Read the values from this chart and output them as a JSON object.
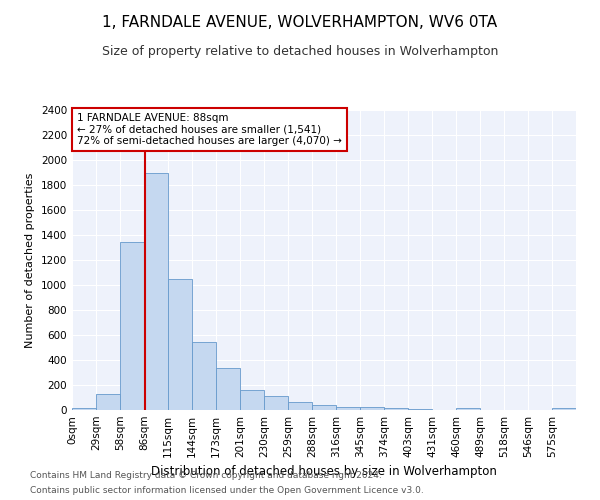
{
  "title": "1, FARNDALE AVENUE, WOLVERHAMPTON, WV6 0TA",
  "subtitle": "Size of property relative to detached houses in Wolverhampton",
  "xlabel": "Distribution of detached houses by size in Wolverhampton",
  "ylabel": "Number of detached properties",
  "bin_labels": [
    "0sqm",
    "29sqm",
    "58sqm",
    "86sqm",
    "115sqm",
    "144sqm",
    "173sqm",
    "201sqm",
    "230sqm",
    "259sqm",
    "288sqm",
    "316sqm",
    "345sqm",
    "374sqm",
    "403sqm",
    "431sqm",
    "460sqm",
    "489sqm",
    "518sqm",
    "546sqm",
    "575sqm"
  ],
  "bar_heights": [
    15,
    125,
    1345,
    1895,
    1045,
    545,
    340,
    160,
    110,
    63,
    38,
    28,
    22,
    15,
    8,
    0,
    20,
    0,
    0,
    0,
    18
  ],
  "bar_color": "#c5d8f0",
  "bar_edgecolor": "#6699cc",
  "vline_x": 88,
  "vline_color": "#cc0000",
  "annotation_text": "1 FARNDALE AVENUE: 88sqm\n← 27% of detached houses are smaller (1,541)\n72% of semi-detached houses are larger (4,070) →",
  "annotation_box_color": "#cc0000",
  "ylim": [
    0,
    2400
  ],
  "yticks": [
    0,
    200,
    400,
    600,
    800,
    1000,
    1200,
    1400,
    1600,
    1800,
    2000,
    2200,
    2400
  ],
  "bin_width": 29,
  "property_sqm": 88,
  "footer1": "Contains HM Land Registry data © Crown copyright and database right 2024.",
  "footer2": "Contains public sector information licensed under the Open Government Licence v3.0.",
  "fig_bg": "#ffffff",
  "plot_bg": "#eef2fb",
  "grid_color": "#ffffff",
  "title_fontsize": 11,
  "subtitle_fontsize": 9,
  "xlabel_fontsize": 8.5,
  "ylabel_fontsize": 8,
  "tick_fontsize": 7.5,
  "annotation_fontsize": 7.5,
  "footer_fontsize": 6.5
}
